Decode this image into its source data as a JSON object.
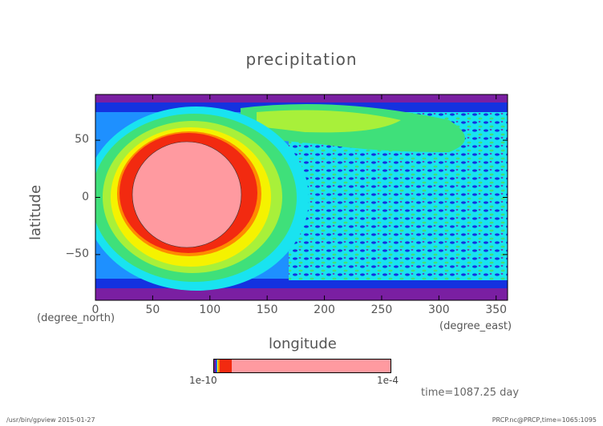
{
  "chart_data": {
    "type": "heatmap",
    "title": "precipitation",
    "xlabel": "longitude",
    "ylabel": "latitude",
    "xunit": "(degree_east)",
    "yunit": "(degree_north)",
    "xlim": [
      0,
      360
    ],
    "ylim": [
      -90,
      90
    ],
    "xticks": [
      0,
      50,
      100,
      150,
      200,
      250,
      300,
      350
    ],
    "yticks": [
      50,
      0,
      -50
    ],
    "grid": false,
    "legend": "bottom",
    "colorbar": {
      "min_label": "1e-10",
      "max_label": "1e-4",
      "colors": [
        "#7a1fa2",
        "#1432e0",
        "#1e90ff",
        "#19e3f0",
        "#3fe07a",
        "#a8f03a",
        "#f5f200",
        "#ff8a00",
        "#f22a10",
        "#ff9aa0"
      ]
    },
    "features": [
      {
        "name": "max-region",
        "center_lon": 85,
        "center_lat": 5,
        "value_label": "1e-4"
      }
    ]
  },
  "annotation": {
    "time": "time=1087.25 day"
  },
  "footer": {
    "left": "/usr/bin/gpview  2015-01-27",
    "right": "PRCP.nc@PRCP,time=1065:1095"
  }
}
